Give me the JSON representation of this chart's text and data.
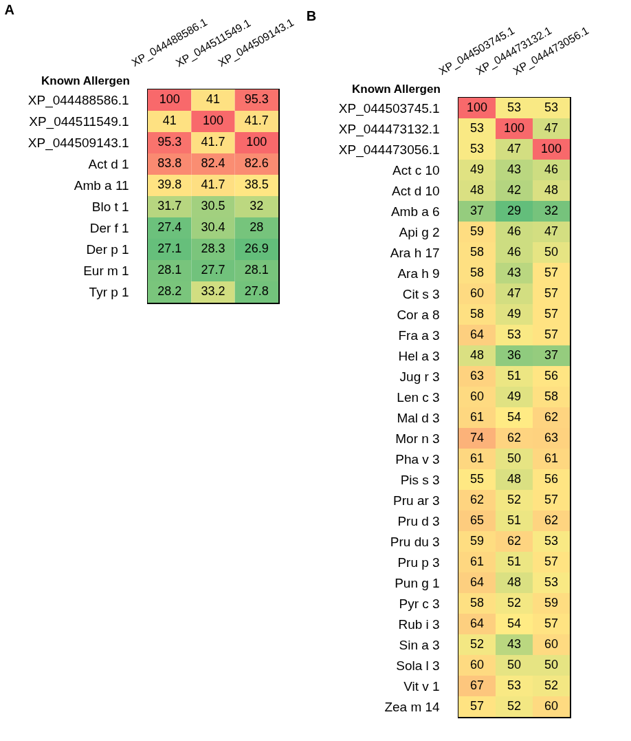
{
  "chart_data": [
    {
      "type": "heatmap",
      "title": "A",
      "ylabel": "Known Allergen",
      "categories": [
        "XP_044488586.1",
        "XP_044511549.1",
        "XP_044509143.1"
      ],
      "y_categories": [
        "XP_044488586.1",
        "XP_044511549.1",
        "XP_044509143.1",
        "Act d 1",
        "Amb a 11",
        "Blo t 1",
        "Der f 1",
        "Der p 1",
        "Eur m 1",
        "Tyr p 1"
      ],
      "cells": [
        [
          100,
          41,
          95.3
        ],
        [
          41,
          100,
          41.7
        ],
        [
          95.3,
          41.7,
          100
        ],
        [
          83.8,
          82.4,
          82.6
        ],
        [
          39.8,
          41.7,
          38.5
        ],
        [
          31.7,
          30.5,
          32
        ],
        [
          27.4,
          30.4,
          28
        ],
        [
          27.1,
          28.3,
          26.9
        ],
        [
          28.1,
          27.7,
          28.1
        ],
        [
          28.2,
          33.2,
          27.8
        ]
      ],
      "data_labels": true
    },
    {
      "type": "heatmap",
      "title": "B",
      "ylabel": "Known Allergen",
      "categories": [
        "XP_044503745.1",
        "XP_044473132.1",
        "XP_044473056.1"
      ],
      "y_categories": [
        "XP_044503745.1",
        "XP_044473132.1",
        "XP_044473056.1",
        "Act c 10",
        "Act d 10",
        "Amb a 6",
        "Api g 2",
        "Ara h 17",
        "Ara h 9",
        "Cit s 3",
        "Cor a 8",
        "Fra a 3",
        "Hel a 3",
        "Jug r 3",
        "Len c 3",
        "Mal d 3",
        "Mor n 3",
        "Pha v 3",
        "Pis s 3",
        "Pru ar 3",
        "Pru d 3",
        "Pru du 3",
        "Pru p 3",
        "Pun g 1",
        "Pyr c 3",
        "Rub i 3",
        "Sin a 3",
        "Sola l 3",
        "Vit v 1",
        "Zea m 14"
      ],
      "cells": [
        [
          100,
          53,
          53
        ],
        [
          53,
          100,
          47
        ],
        [
          53,
          47,
          100
        ],
        [
          49,
          43,
          46
        ],
        [
          48,
          42,
          48
        ],
        [
          37,
          29,
          32
        ],
        [
          59,
          46,
          47
        ],
        [
          58,
          46,
          50
        ],
        [
          58,
          43,
          57
        ],
        [
          60,
          47,
          57
        ],
        [
          58,
          49,
          57
        ],
        [
          64,
          53,
          57
        ],
        [
          48,
          36,
          37
        ],
        [
          63,
          51,
          56
        ],
        [
          60,
          49,
          58
        ],
        [
          61,
          54,
          62
        ],
        [
          74,
          62,
          63
        ],
        [
          61,
          50,
          61
        ],
        [
          55,
          48,
          56
        ],
        [
          62,
          52,
          57
        ],
        [
          65,
          51,
          62
        ],
        [
          59,
          62,
          53
        ],
        [
          61,
          51,
          57
        ],
        [
          64,
          48,
          53
        ],
        [
          58,
          52,
          59
        ],
        [
          64,
          54,
          57
        ],
        [
          52,
          43,
          60
        ],
        [
          60,
          50,
          50
        ],
        [
          67,
          53,
          52
        ],
        [
          57,
          52,
          60
        ]
      ],
      "data_labels": true
    }
  ]
}
